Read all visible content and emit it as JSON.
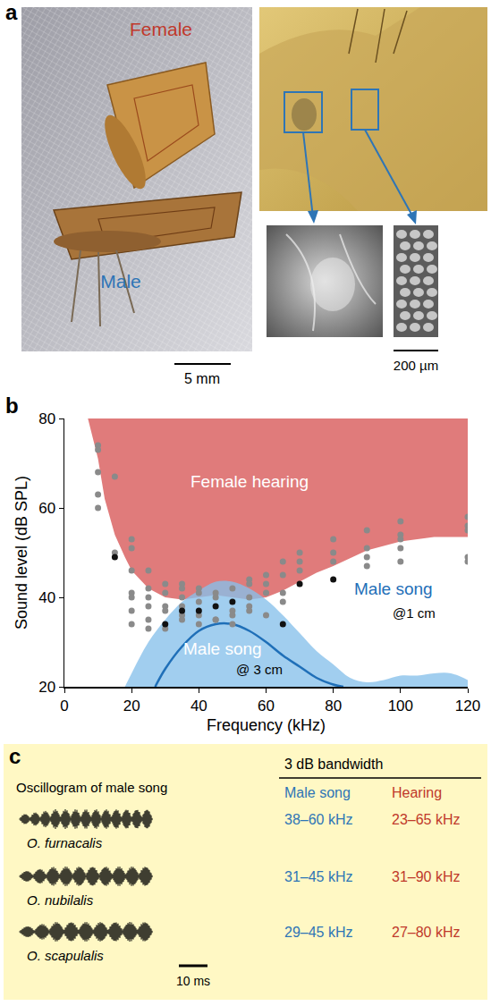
{
  "panel_a": {
    "letter": "a",
    "female_label": "Female",
    "male_label": "Male",
    "scale_bar_left": "5 mm",
    "scale_bar_right": "200 µm"
  },
  "panel_b": {
    "letter": "b"
  },
  "chart_data": {
    "type": "scatter",
    "x_label": "Frequency (kHz)",
    "y_label": "Sound level (dB SPL)",
    "xlim": [
      0,
      120
    ],
    "xticks": [
      0,
      20,
      40,
      60,
      80,
      100,
      120
    ],
    "ylim": [
      20,
      80
    ],
    "yticks": [
      20,
      40,
      60,
      80
    ],
    "grid": false,
    "series": [
      {
        "type": "threshold",
        "color": "#e07b7b",
        "x": [
          7,
          10,
          12,
          15,
          18,
          20,
          25,
          30,
          35,
          40,
          45,
          50,
          55,
          60,
          65,
          70,
          75,
          80,
          90,
          100,
          110,
          120
        ],
        "values": [
          80,
          71,
          62,
          54,
          49,
          46,
          42,
          40,
          39.5,
          40,
          40.5,
          40,
          39.5,
          40,
          41.5,
          43.5,
          45.5,
          47,
          50.5,
          52.5,
          53.5,
          53.5
        ]
      },
      {
        "type": "area",
        "color": "#86c0ea",
        "x": [
          18,
          20,
          25,
          30,
          35,
          40,
          45,
          50,
          55,
          60,
          65,
          70,
          75,
          80,
          85,
          90,
          95,
          100,
          105,
          110,
          115,
          120
        ],
        "values": [
          20,
          23,
          30,
          35,
          39,
          41.5,
          43.5,
          43.5,
          42,
          39.5,
          36,
          32,
          28,
          25,
          22,
          21,
          21.5,
          22.5,
          22.5,
          23,
          23,
          21.5
        ]
      },
      {
        "type": "line",
        "color": "#1f6fb8",
        "line_style": "solid",
        "x": [
          27,
          30,
          35,
          40,
          45,
          50,
          55,
          60,
          65,
          70,
          75,
          80,
          83
        ],
        "values": [
          20,
          24,
          29,
          32.5,
          34,
          34,
          32.5,
          30,
          27,
          24.5,
          22,
          20.5,
          20
        ]
      },
      {
        "type": "scatter",
        "color": "#8a8a8a",
        "marker": "circle",
        "x": [
          10,
          10,
          10,
          10,
          10,
          15,
          15,
          20,
          20,
          20,
          20,
          20,
          20,
          20,
          25,
          25,
          25,
          25,
          25,
          25,
          30,
          30,
          30,
          30,
          30,
          35,
          35,
          35,
          35,
          35,
          35,
          40,
          40,
          40,
          40,
          40,
          45,
          45,
          45,
          45,
          50,
          50,
          50,
          50,
          55,
          55,
          55,
          55,
          55,
          60,
          60,
          60,
          60,
          65,
          65,
          65,
          65,
          70,
          70,
          70,
          80,
          80,
          80,
          90,
          90,
          90,
          90,
          100,
          100,
          100,
          100,
          100,
          120,
          120,
          120,
          120,
          120
        ],
        "values": [
          74,
          73,
          68,
          63,
          60,
          67,
          50,
          53,
          51,
          46,
          41,
          40,
          37,
          34,
          46,
          42,
          40,
          38,
          35,
          33,
          43,
          41,
          38,
          37,
          33,
          43,
          42,
          40,
          38,
          36,
          35,
          42,
          41,
          39,
          36,
          34,
          41,
          40,
          35,
          35,
          42,
          37,
          36,
          34,
          44,
          43,
          40,
          38,
          37,
          45,
          43,
          41,
          36,
          48,
          45,
          41,
          39,
          50,
          48,
          46,
          53,
          50,
          48,
          55,
          51,
          49,
          47,
          57,
          54,
          53,
          51,
          48,
          58,
          56,
          55,
          49,
          48
        ]
      },
      {
        "type": "scatter",
        "color": "#111111",
        "marker": "circle",
        "x": [
          15,
          30,
          35,
          40,
          45,
          50,
          65,
          70,
          80
        ],
        "values": [
          49,
          34,
          37,
          37,
          38,
          39,
          34,
          43,
          44
        ]
      }
    ],
    "annotations": [
      {
        "text": "Female hearing",
        "x": 55,
        "y": 66,
        "color": "#ffffff"
      },
      {
        "text": "Male song",
        "x": 98,
        "y": 42,
        "color": "#1f6fb8"
      },
      {
        "text": "@1 cm",
        "x": 104,
        "y": 36.5,
        "color": "#000000"
      },
      {
        "text": "Male song",
        "x": 47,
        "y": 28.5,
        "color": "#ffffff"
      },
      {
        "text": "@ 3 cm",
        "x": 58,
        "y": 24,
        "color": "#000000"
      }
    ]
  },
  "panel_c": {
    "letter": "c",
    "oscillogram_title": "Oscillogram of male song",
    "scale_bar": "10 ms",
    "table_title": "3 dB bandwidth",
    "columns": [
      {
        "text": "Male song",
        "color": "#2e75b6"
      },
      {
        "text": "Hearing",
        "color": "#c0392b"
      }
    ],
    "rows": [
      [
        "O. furnacalis",
        "38–60 kHz",
        "23–65 kHz"
      ],
      [
        "O. nubilalis",
        "31–45 kHz",
        "31–90 kHz"
      ],
      [
        "O. scapulalis",
        "29–45 kHz",
        "27–80 kHz"
      ]
    ]
  }
}
